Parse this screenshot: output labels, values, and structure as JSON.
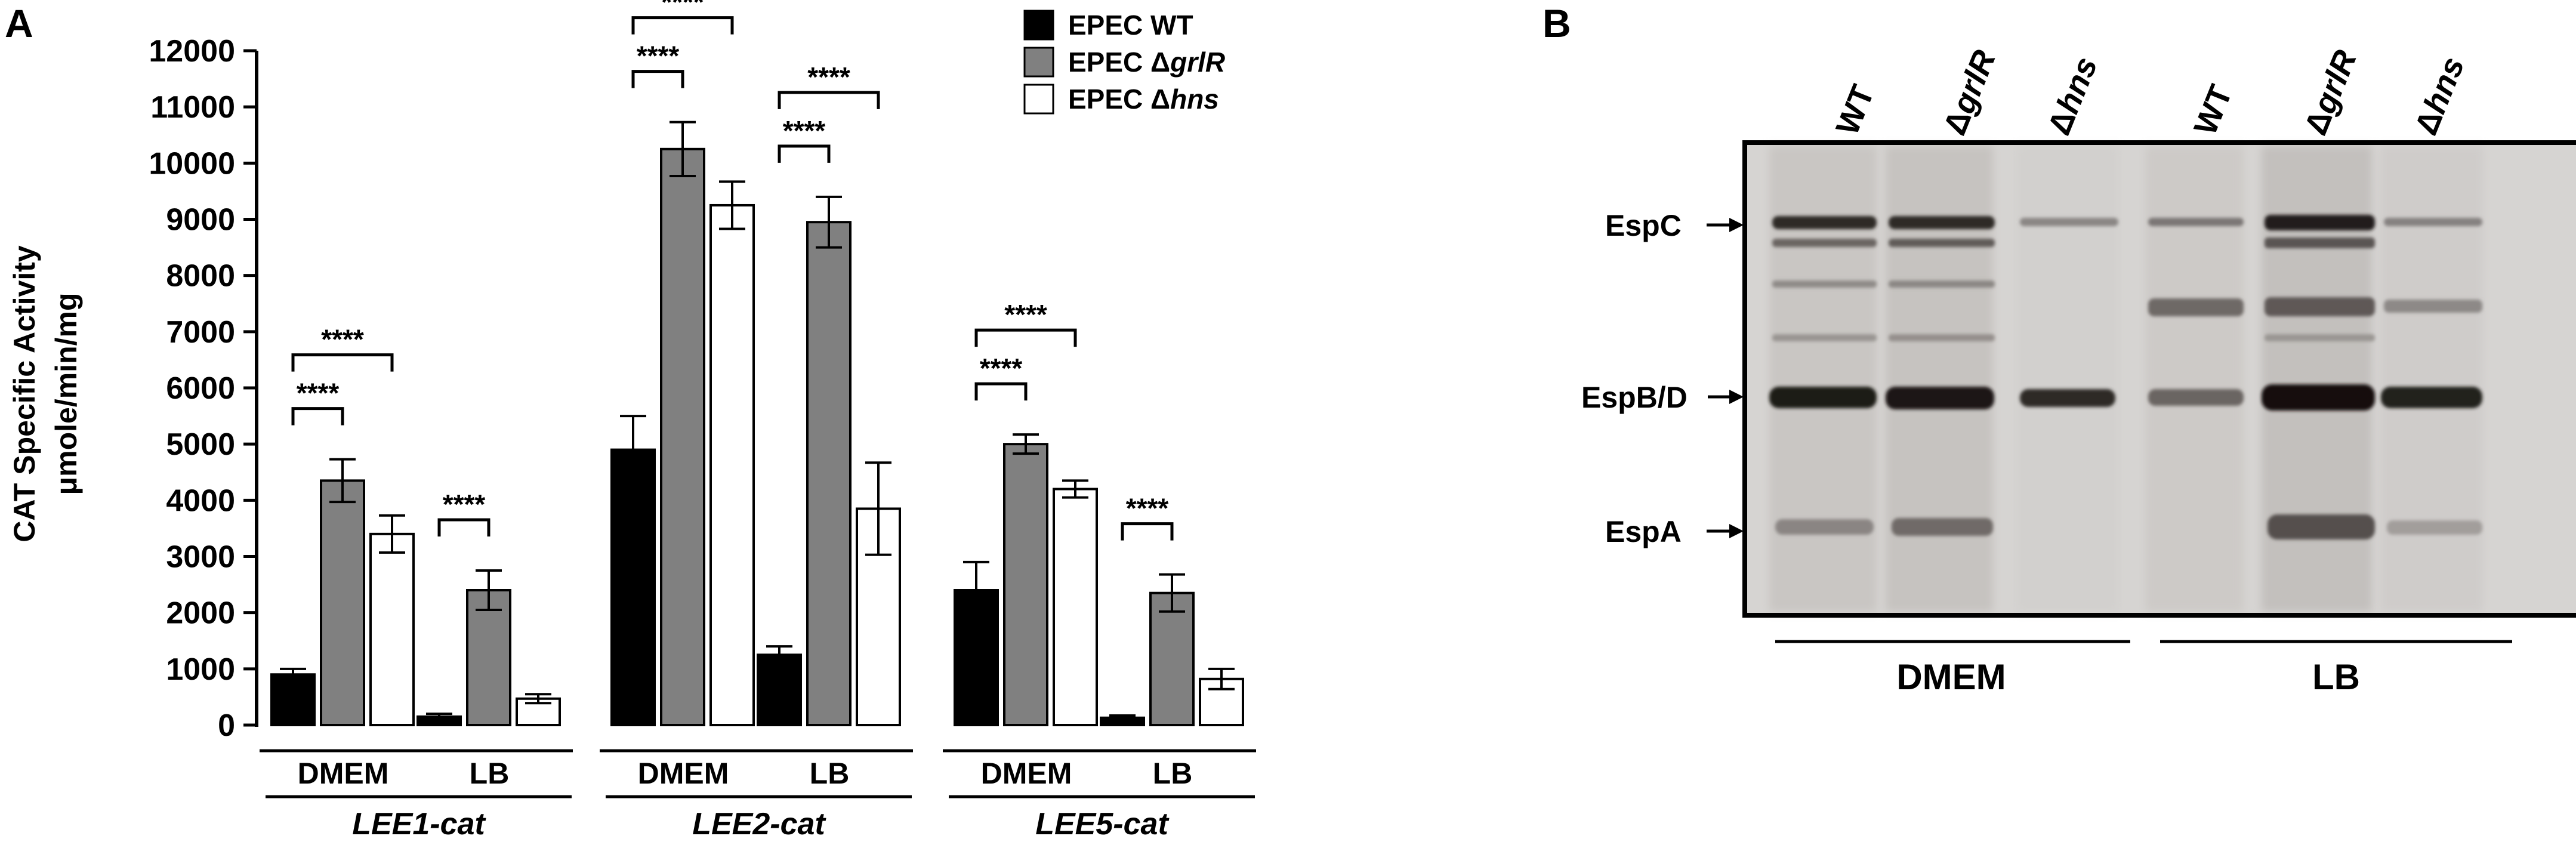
{
  "panel_a_letter": "A",
  "panel_b_letter": "B",
  "chart_data": {
    "type": "bar",
    "ylabel_line1": "CAT Specific Activity",
    "ylabel_line2": "μmole/min/mg",
    "ylim": [
      0,
      12000
    ],
    "yticks": [
      0,
      1000,
      2000,
      3000,
      4000,
      5000,
      6000,
      7000,
      8000,
      9000,
      10000,
      11000,
      12000
    ],
    "grid": false,
    "legend_position": "top-right",
    "series": [
      {
        "name_prefix": "EPEC ",
        "name_gene": "WT",
        "color": "#000000"
      },
      {
        "name_prefix": "EPEC Δ",
        "name_gene": "grlR",
        "color": "#808080"
      },
      {
        "name_prefix": "EPEC Δ",
        "name_gene": "hns",
        "color": "#ffffff"
      }
    ],
    "groups": [
      {
        "name": "LEE1-cat",
        "conditions": [
          {
            "label": "DMEM",
            "values": [
              900,
              4350,
              3400
            ],
            "errors": [
              100,
              380,
              330
            ]
          },
          {
            "label": "LB",
            "values": [
              150,
              2400,
              470
            ],
            "errors": [
              50,
              350,
              80
            ]
          }
        ]
      },
      {
        "name": "LEE2-cat",
        "conditions": [
          {
            "label": "DMEM",
            "values": [
              4900,
              10250,
              9250
            ],
            "errors": [
              600,
              480,
              420
            ]
          },
          {
            "label": "LB",
            "values": [
              1250,
              8950,
              3850
            ],
            "errors": [
              150,
              450,
              820
            ]
          }
        ]
      },
      {
        "name": "LEE5-cat",
        "conditions": [
          {
            "label": "DMEM",
            "values": [
              2400,
              5000,
              4200
            ],
            "errors": [
              500,
              170,
              150
            ]
          },
          {
            "label": "LB",
            "values": [
              130,
              2350,
              820
            ],
            "errors": [
              40,
              330,
              180
            ]
          }
        ]
      }
    ],
    "significance_label": "****",
    "significance": [
      {
        "group": 0,
        "cond": 0,
        "from": 0,
        "to": 1
      },
      {
        "group": 0,
        "cond": 0,
        "from": 0,
        "to": 2
      },
      {
        "group": 0,
        "cond": 1,
        "from": 0,
        "to": 1
      },
      {
        "group": 1,
        "cond": 0,
        "from": 0,
        "to": 1
      },
      {
        "group": 1,
        "cond": 0,
        "from": 0,
        "to": 2
      },
      {
        "group": 1,
        "cond": 1,
        "from": 0,
        "to": 1
      },
      {
        "group": 1,
        "cond": 1,
        "from": 0,
        "to": 2
      },
      {
        "group": 2,
        "cond": 0,
        "from": 0,
        "to": 1
      },
      {
        "group": 2,
        "cond": 0,
        "from": 0,
        "to": 2
      },
      {
        "group": 2,
        "cond": 1,
        "from": 0,
        "to": 1
      }
    ]
  },
  "gel": {
    "lanes": [
      {
        "prefix": "",
        "gene": "WT"
      },
      {
        "prefix": "Δ",
        "gene": "grlR"
      },
      {
        "prefix": "Δ",
        "gene": "hns"
      },
      {
        "prefix": "",
        "gene": "WT"
      },
      {
        "prefix": "Δ",
        "gene": "grlR"
      },
      {
        "prefix": "Δ",
        "gene": "hns"
      }
    ],
    "markers": [
      "EspC",
      "EspB/D",
      "EspA"
    ],
    "conditions": [
      "DMEM",
      "LB"
    ]
  }
}
